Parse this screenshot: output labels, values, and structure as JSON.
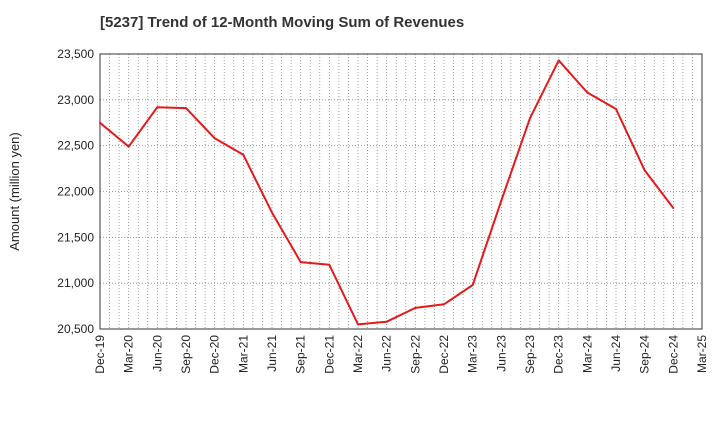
{
  "chart_data": {
    "type": "line",
    "title": "[5237]  Trend of 12-Month Moving Sum of Revenues",
    "xlabel": "",
    "ylabel": "Amount (million yen)",
    "ylim": [
      20500,
      23500
    ],
    "yticks": [
      "20,500",
      "21,000",
      "21,500",
      "22,000",
      "22,500",
      "23,000",
      "23,500"
    ],
    "ytick_values": [
      20500,
      21000,
      21500,
      22000,
      22500,
      23000,
      23500
    ],
    "categories": [
      "Dec-19",
      "Mar-20",
      "Jun-20",
      "Sep-20",
      "Dec-20",
      "Mar-21",
      "Jun-21",
      "Sep-21",
      "Dec-21",
      "Mar-22",
      "Jun-22",
      "Sep-22",
      "Dec-22",
      "Mar-23",
      "Jun-23",
      "Sep-23",
      "Dec-23",
      "Mar-24",
      "Jun-24",
      "Sep-24",
      "Dec-24",
      "Mar-25"
    ],
    "grid": true,
    "series": [
      {
        "color": "#e31a1c",
        "values": [
          22750,
          22490,
          22920,
          22910,
          22580,
          22400,
          21770,
          21230,
          21200,
          20550,
          20580,
          20730,
          20770,
          20980,
          21900,
          22800,
          23430,
          23080,
          22900,
          22230,
          21820,
          null
        ]
      }
    ]
  }
}
